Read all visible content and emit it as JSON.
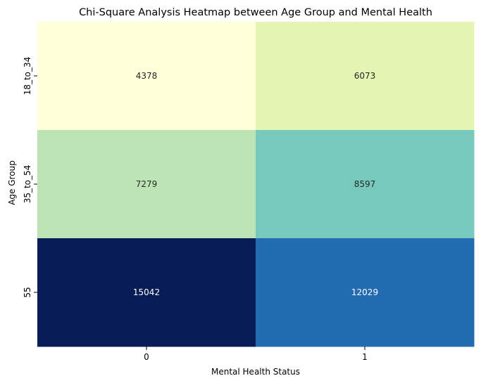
{
  "chart_data": {
    "type": "heatmap",
    "title": "Chi-Square Analysis Heatmap between Age Group and Mental Health",
    "xlabel": "Mental Health Status",
    "ylabel": "Age Group",
    "x_categories": [
      "0",
      "1"
    ],
    "y_categories": [
      "18_to_34",
      "35_to_54",
      "55"
    ],
    "values": [
      [
        4378,
        6073
      ],
      [
        7279,
        8597
      ],
      [
        15042,
        12029
      ]
    ],
    "colormap": "YlGnBu",
    "colorbar": false,
    "grid": false,
    "cell_colors": [
      [
        "#ffffd9",
        "#e3f4b3"
      ],
      [
        "#bce4b5",
        "#78c9bd"
      ],
      [
        "#081d58",
        "#236bb0"
      ]
    ],
    "text_colors": [
      [
        "#262626",
        "#262626"
      ],
      [
        "#262626",
        "#262626"
      ],
      [
        "#ffffff",
        "#ffffff"
      ]
    ]
  }
}
